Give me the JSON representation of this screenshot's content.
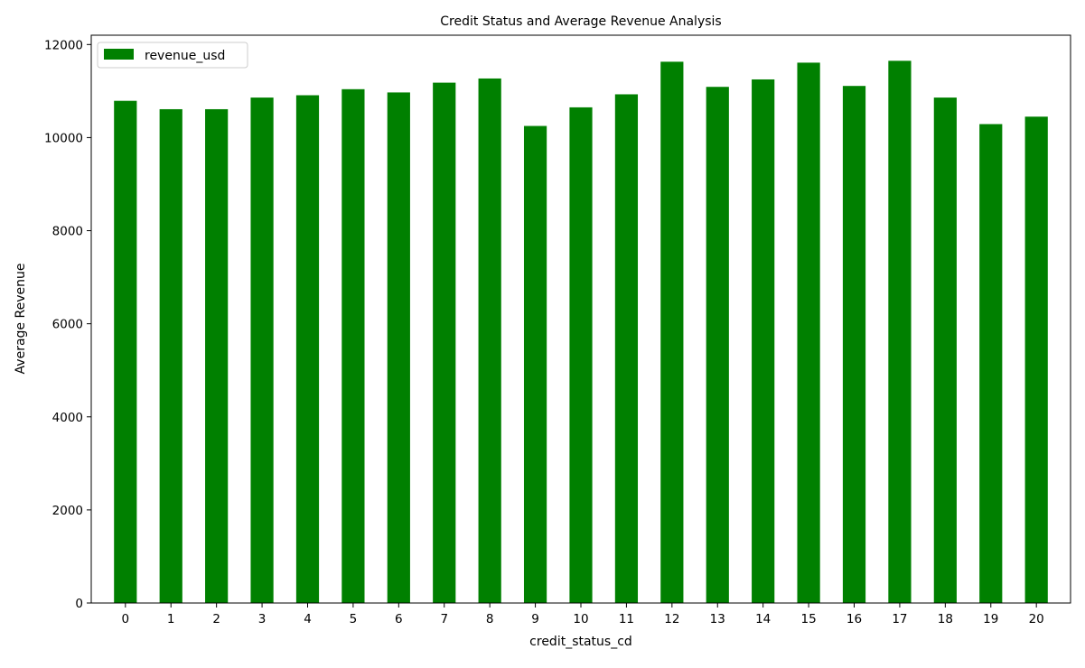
{
  "chart_data": {
    "type": "bar",
    "title": "Credit Status and Average Revenue Analysis",
    "xlabel": "credit_status_cd",
    "ylabel": "Average Revenue",
    "categories": [
      "0",
      "1",
      "2",
      "3",
      "4",
      "5",
      "6",
      "7",
      "8",
      "9",
      "10",
      "11",
      "12",
      "13",
      "14",
      "15",
      "16",
      "17",
      "18",
      "19",
      "20"
    ],
    "series": [
      {
        "name": "revenue_usd",
        "color": "#008000",
        "values": [
          10790,
          10610,
          10610,
          10860,
          10910,
          11040,
          10970,
          11180,
          11270,
          10250,
          10650,
          10930,
          11630,
          11090,
          11250,
          11610,
          11110,
          11650,
          10860,
          10290,
          10450
        ]
      }
    ],
    "ylim": [
      0,
      12200
    ],
    "yticks": [
      0,
      2000,
      4000,
      6000,
      8000,
      10000,
      12000
    ],
    "legend_position": "top-left",
    "grid": false
  }
}
